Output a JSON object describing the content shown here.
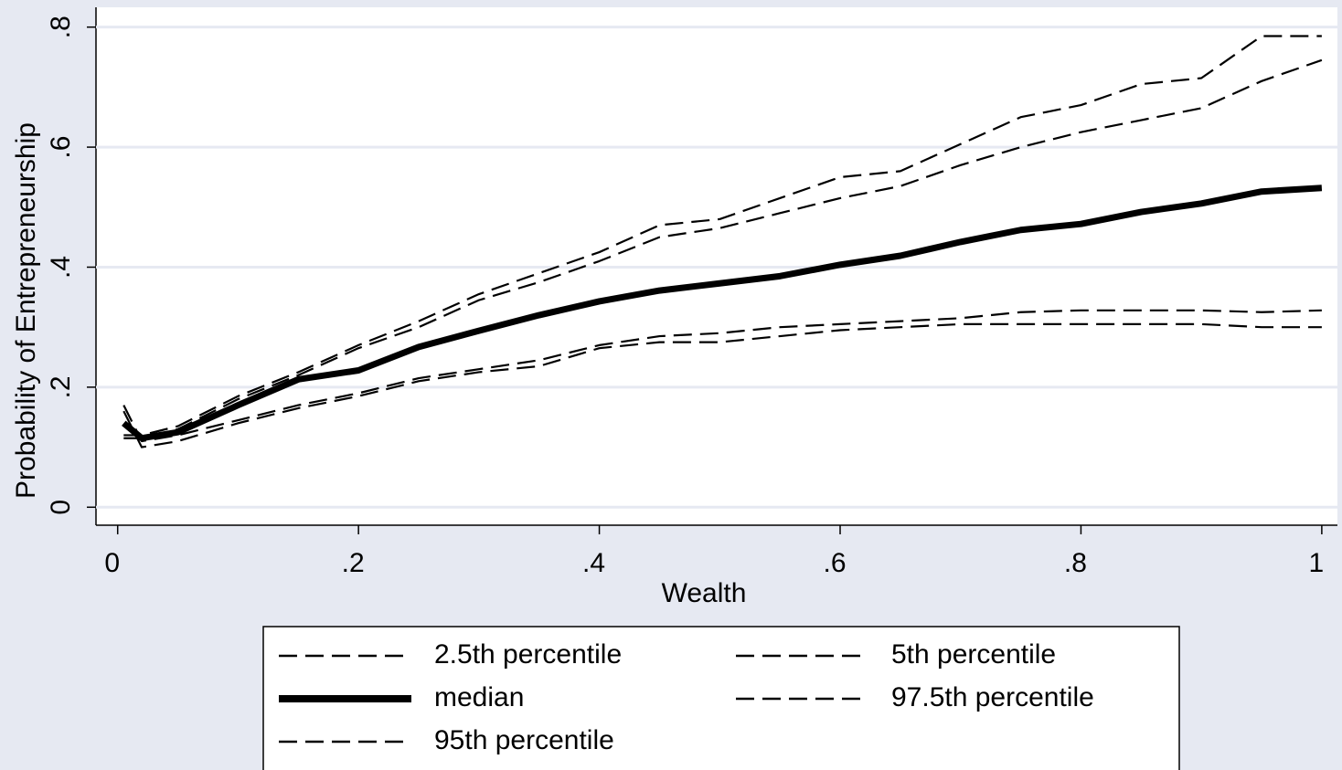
{
  "chart_data": {
    "type": "line",
    "x_label": "Wealth",
    "y_label": "Probability of Entrepreneurship",
    "x": [
      0.005,
      0.02,
      0.05,
      0.1,
      0.15,
      0.2,
      0.25,
      0.3,
      0.35,
      0.4,
      0.45,
      0.5,
      0.55,
      0.6,
      0.65,
      0.7,
      0.75,
      0.8,
      0.85,
      0.9,
      0.95,
      1.0
    ],
    "series": [
      {
        "name": "2.5th percentile",
        "color": "#000000",
        "style": "dashed",
        "values": [
          0.16,
          0.1,
          0.11,
          0.14,
          0.165,
          0.185,
          0.21,
          0.225,
          0.235,
          0.265,
          0.275,
          0.275,
          0.285,
          0.295,
          0.3,
          0.305,
          0.305,
          0.305,
          0.305,
          0.305,
          0.3,
          0.3
        ]
      },
      {
        "name": "5th percentile",
        "color": "#000000",
        "style": "dashed",
        "values": [
          0.17,
          0.11,
          0.12,
          0.145,
          0.17,
          0.19,
          0.215,
          0.23,
          0.245,
          0.27,
          0.285,
          0.29,
          0.3,
          0.305,
          0.31,
          0.315,
          0.325,
          0.328,
          0.328,
          0.328,
          0.325,
          0.328
        ]
      },
      {
        "name": "median",
        "color": "#000000",
        "style": "solid",
        "values": [
          0.14,
          0.115,
          0.125,
          0.17,
          0.213,
          0.228,
          0.267,
          0.294,
          0.32,
          0.343,
          0.361,
          0.373,
          0.385,
          0.404,
          0.419,
          0.442,
          0.462,
          0.472,
          0.492,
          0.506,
          0.526,
          0.532
        ]
      },
      {
        "name": "97.5th percentile",
        "color": "#000000",
        "style": "dashed",
        "values": [
          0.12,
          0.12,
          0.135,
          0.185,
          0.225,
          0.27,
          0.31,
          0.355,
          0.39,
          0.425,
          0.47,
          0.48,
          0.515,
          0.55,
          0.56,
          0.605,
          0.65,
          0.67,
          0.705,
          0.715,
          0.785,
          0.785
        ]
      },
      {
        "name": "95th percentile",
        "color": "#000000",
        "style": "dashed",
        "values": [
          0.115,
          0.115,
          0.13,
          0.18,
          0.22,
          0.265,
          0.3,
          0.345,
          0.375,
          0.41,
          0.45,
          0.465,
          0.49,
          0.515,
          0.535,
          0.57,
          0.6,
          0.625,
          0.645,
          0.665,
          0.71,
          0.745
        ]
      }
    ],
    "xlim": [
      -0.018,
      1.013
    ],
    "ylim": [
      -0.03,
      0.833
    ],
    "xticks": [
      0,
      {
        "value": 0.2,
        "label": ".2"
      },
      {
        "value": 0.4,
        "label": ".4"
      },
      {
        "value": 0.6,
        "label": ".6"
      },
      {
        "value": 0.8,
        "label": ".8"
      },
      1
    ],
    "yticks": [
      0,
      {
        "value": 0.2,
        "label": ".2"
      },
      {
        "value": 0.4,
        "label": ".4"
      },
      {
        "value": 0.6,
        "label": ".6"
      },
      {
        "value": 0.8,
        "label": ".8"
      }
    ],
    "grid": true
  }
}
